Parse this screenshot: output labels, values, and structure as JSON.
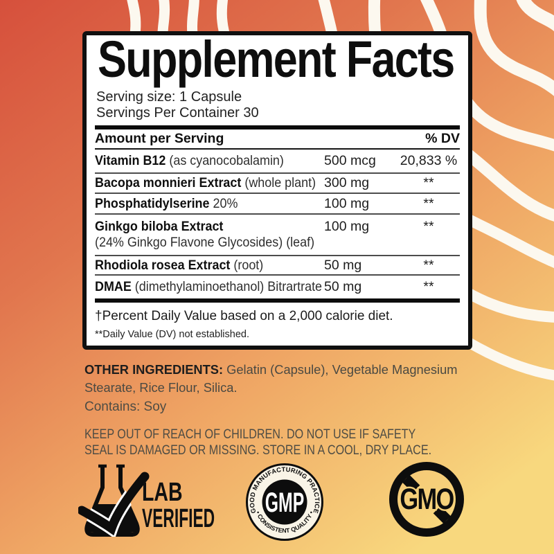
{
  "background": {
    "gradient": [
      "#d6503c",
      "#e1764e",
      "#efa564",
      "#f8d87e"
    ],
    "wave_color": "#fcf8ef"
  },
  "panel": {
    "title": "Supplement Facts",
    "serving_size": "Serving size: 1 Capsule",
    "servings_per_container": "Servings Per Container 30",
    "header": {
      "amount": "Amount per Serving",
      "dv": "% DV"
    },
    "rows": [
      {
        "name_bold": "Vitamin B12",
        "name_rest": " (as  cyanocobalamin)",
        "amount": "500 mcg",
        "dv": "20,833 %"
      },
      {
        "name_bold": "Bacopa monnieri Extract",
        "name_rest": " (whole plant)",
        "amount": "300 mg",
        "dv": "**"
      },
      {
        "name_bold": "Phosphatidylserine",
        "name_rest": " 20%",
        "amount": "100 mg",
        "dv": "**"
      },
      {
        "name_bold": "Ginkgo biloba Extract",
        "name_rest": "",
        "line2": "(24% Ginkgo Flavone Glycosides) (leaf)",
        "amount": "100 mg",
        "dv": "**"
      },
      {
        "name_bold": "Rhodiola rosea Extract",
        "name_rest": " (root)",
        "amount": "50 mg",
        "dv": "**"
      },
      {
        "name_bold": "DMAE",
        "name_rest": " (dimethylaminoethanol) Bitrartrate",
        "amount": "50 mg",
        "dv": "**"
      }
    ],
    "footnote1": "†Percent Daily Value based on a 2,000 calorie diet.",
    "footnote2": "**Daily Value (DV) not established."
  },
  "other_ingredients": {
    "label": "OTHER INGREDIENTS:",
    "value_line1": " Gelatin (Capsule), Vegetable Magnesium",
    "value_line2": "Stearate, Rice Flour, Silica."
  },
  "contains": "Contains: Soy",
  "warning_line1": "KEEP OUT OF REACH OF CHILDREN. DO NOT USE IF SAFETY",
  "warning_line2": "SEAL IS DAMAGED OR MISSING. STORE IN A COOL, DRY PLACE.",
  "badges": {
    "lab": {
      "line1": "LAB",
      "line2": "VERIFIED"
    },
    "gmp": {
      "center": "GMP",
      "top_arc": "GOOD MANUFACTURING PRACTICE",
      "bottom_arc": "• CONSISTENT QUALITY •"
    },
    "gmo": {
      "label": "GMO"
    }
  }
}
